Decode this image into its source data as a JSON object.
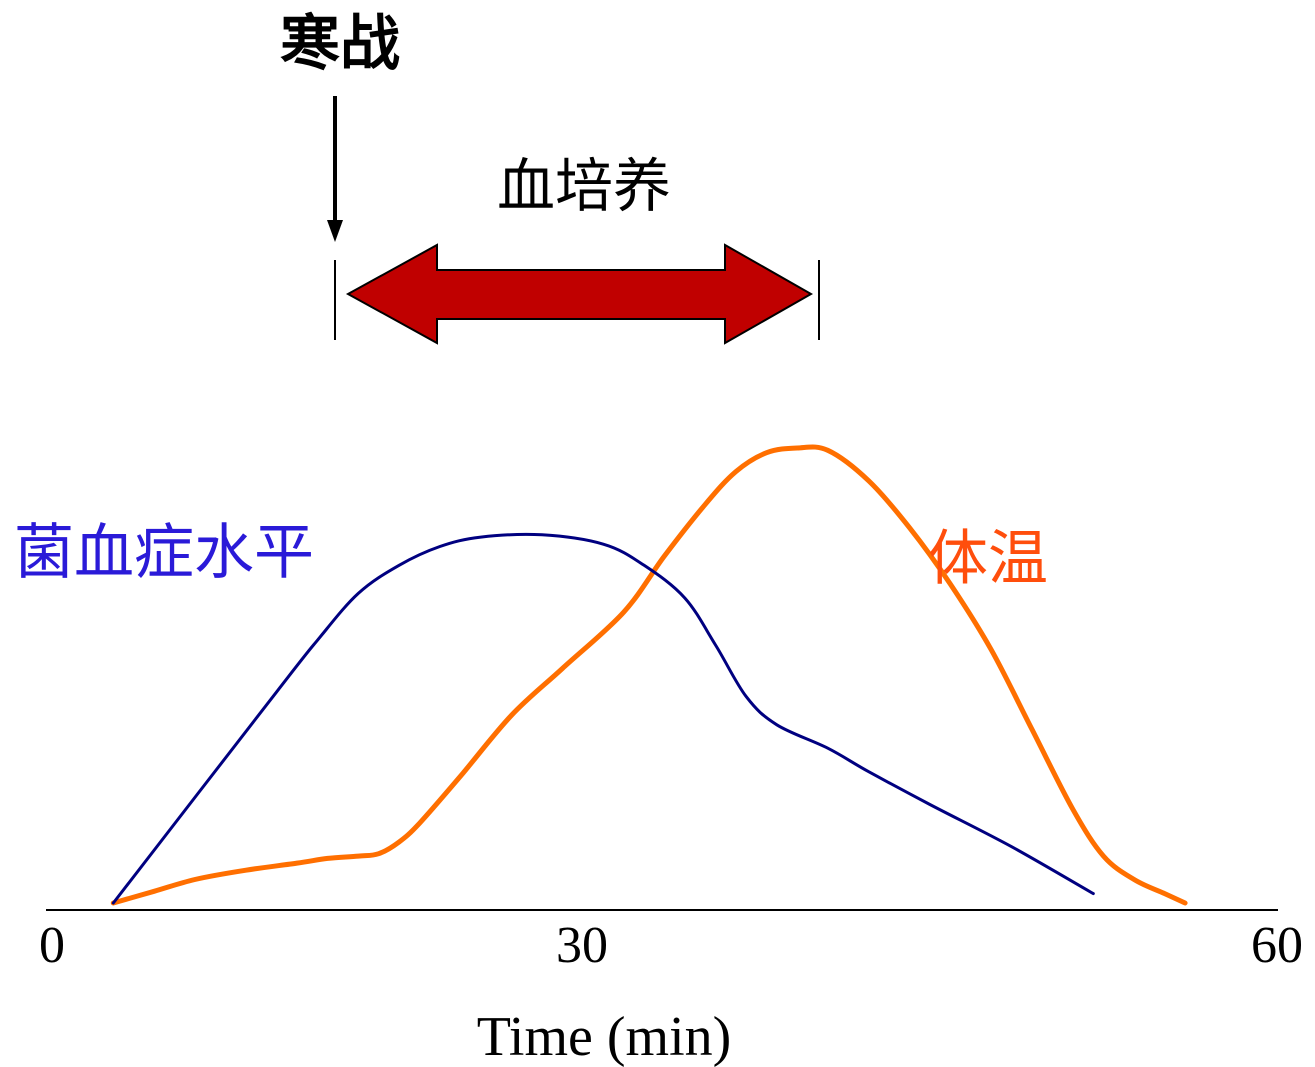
{
  "labels": {
    "chills": "寒战",
    "blood_culture": "血培养",
    "bacteremia": "菌血症水平",
    "temperature": "体温"
  },
  "axis": {
    "ticks": [
      "0",
      "30",
      "60"
    ],
    "xlabel": "Time (min)"
  },
  "colors": {
    "bacteremia": "#000080",
    "temperature": "#ff6f00",
    "bacteremia_label": "#2a1ad8",
    "temperature_label": "#ff4e0c",
    "arrow_fill": "#c00000"
  },
  "chart_data": {
    "type": "line",
    "xlim": [
      0,
      60
    ],
    "series": [
      {
        "name": "菌血症水平",
        "color": "#000080",
        "points": [
          [
            3.0,
            0.0
          ],
          [
            11.0,
            0.45
          ],
          [
            13.0,
            0.56
          ],
          [
            15.0,
            0.66
          ],
          [
            17.0,
            0.72
          ],
          [
            19.0,
            0.76
          ],
          [
            21.0,
            0.78
          ],
          [
            24.0,
            0.785
          ],
          [
            27.0,
            0.765
          ],
          [
            29.0,
            0.72
          ],
          [
            31.0,
            0.65
          ],
          [
            32.5,
            0.55
          ],
          [
            34.0,
            0.44
          ],
          [
            35.5,
            0.38
          ],
          [
            38.0,
            0.33
          ],
          [
            40.0,
            0.28
          ],
          [
            43.0,
            0.21
          ],
          [
            47.0,
            0.12
          ],
          [
            51.0,
            0.02
          ]
        ]
      },
      {
        "name": "体温",
        "color": "#ff6f00",
        "points": [
          [
            3.0,
            0.0
          ],
          [
            5.0,
            0.025
          ],
          [
            7.0,
            0.05
          ],
          [
            9.5,
            0.07
          ],
          [
            12.0,
            0.085
          ],
          [
            13.5,
            0.095
          ],
          [
            15.0,
            0.1
          ],
          [
            16.0,
            0.105
          ],
          [
            17.0,
            0.13
          ],
          [
            18.0,
            0.17
          ],
          [
            20.0,
            0.27
          ],
          [
            22.5,
            0.4
          ],
          [
            25.0,
            0.5
          ],
          [
            28.0,
            0.62
          ],
          [
            30.0,
            0.74
          ],
          [
            32.0,
            0.85
          ],
          [
            33.5,
            0.92
          ],
          [
            35.0,
            0.96
          ],
          [
            36.5,
            0.97
          ],
          [
            38.0,
            0.965
          ],
          [
            40.0,
            0.9
          ],
          [
            42.0,
            0.8
          ],
          [
            44.0,
            0.68
          ],
          [
            46.0,
            0.54
          ],
          [
            48.0,
            0.37
          ],
          [
            50.0,
            0.2
          ],
          [
            51.5,
            0.1
          ],
          [
            53.0,
            0.05
          ],
          [
            54.5,
            0.02
          ],
          [
            55.5,
            0.0
          ]
        ]
      }
    ]
  }
}
